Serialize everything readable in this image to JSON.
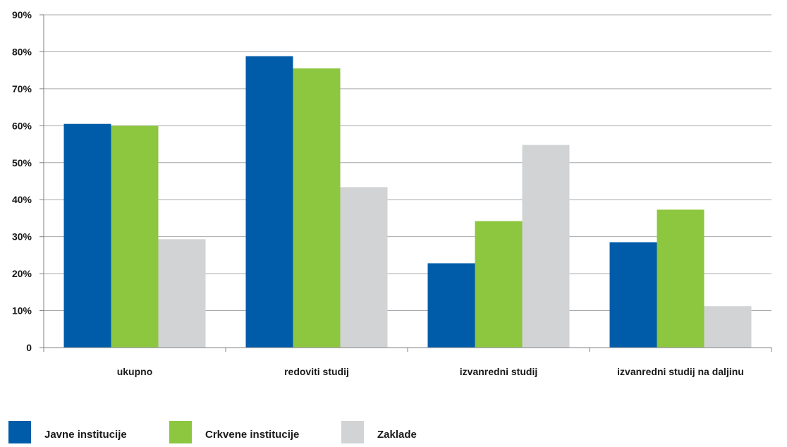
{
  "chart_data": {
    "type": "bar",
    "categories": [
      "ukupno",
      "redoviti studij",
      "izvanredni studij",
      "izvanredni studij na daljinu"
    ],
    "series": [
      {
        "name": "Javne institucije",
        "values": [
          60.5,
          78.8,
          22.8,
          28.5
        ],
        "color": "#005ca9"
      },
      {
        "name": "Crkvene institucije",
        "values": [
          60.0,
          75.5,
          34.2,
          37.3
        ],
        "color": "#8dc63f"
      },
      {
        "name": "Zaklade",
        "values": [
          29.3,
          43.4,
          54.8,
          11.2
        ],
        "color": "#d1d3d4"
      }
    ],
    "ylim": [
      0,
      90
    ],
    "yticks": [
      0,
      10,
      20,
      30,
      40,
      50,
      60,
      70,
      80,
      90
    ],
    "ytick_labels": [
      "0",
      "10%",
      "20%",
      "30%",
      "40%",
      "50%",
      "60%",
      "70%",
      "80%",
      "90%"
    ],
    "title": "",
    "xlabel": "",
    "ylabel": "",
    "grid": true,
    "legend_position": "bottom-left",
    "colors": {
      "grid": "#a7a9ac",
      "axis": "#808285",
      "text": "#1a1a1a"
    }
  }
}
